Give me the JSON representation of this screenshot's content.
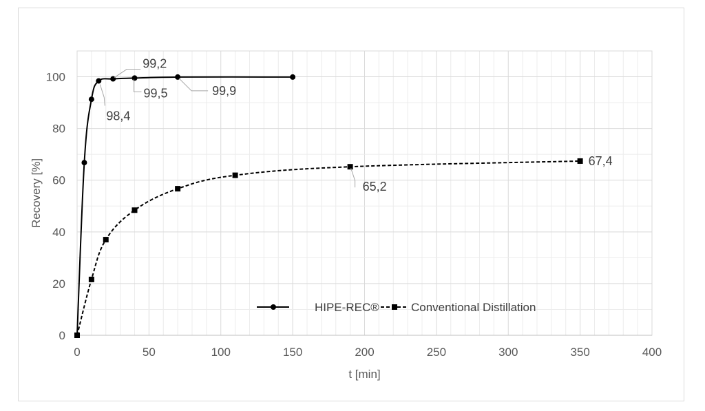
{
  "chart_data": {
    "type": "line",
    "xlabel": "t [min]",
    "ylabel": "Recovery [%]",
    "xlim": [
      0,
      400
    ],
    "ylim": [
      0,
      110
    ],
    "x_ticks": [
      0,
      50,
      100,
      150,
      200,
      250,
      300,
      350,
      400
    ],
    "y_ticks": [
      0,
      20,
      40,
      60,
      80,
      100
    ],
    "grid": true,
    "legend_position": "bottom-center",
    "series": [
      {
        "name": "HIPE-REC®",
        "marker": "circle",
        "line_style": "solid",
        "color": "#000000",
        "x": [
          0,
          5,
          10,
          15,
          25,
          40,
          70,
          150
        ],
        "y": [
          0,
          66.8,
          91.3,
          98.4,
          99.2,
          99.5,
          99.9,
          99.9
        ]
      },
      {
        "name": "Conventional Distillation",
        "marker": "square",
        "line_style": "dashed",
        "color": "#000000",
        "x": [
          0,
          10,
          20,
          40,
          70,
          110,
          190,
          350
        ],
        "y": [
          0,
          21.6,
          37.0,
          48.4,
          56.7,
          61.9,
          65.2,
          67.4
        ]
      }
    ],
    "annotations": [
      {
        "series": 0,
        "point": 3,
        "text": "98,4"
      },
      {
        "series": 0,
        "point": 4,
        "text": "99,2"
      },
      {
        "series": 0,
        "point": 5,
        "text": "99,5"
      },
      {
        "series": 0,
        "point": 6,
        "text": "99,9"
      },
      {
        "series": 1,
        "point": 6,
        "text": "65,2"
      },
      {
        "series": 1,
        "point": 7,
        "text": "67,4"
      }
    ]
  }
}
